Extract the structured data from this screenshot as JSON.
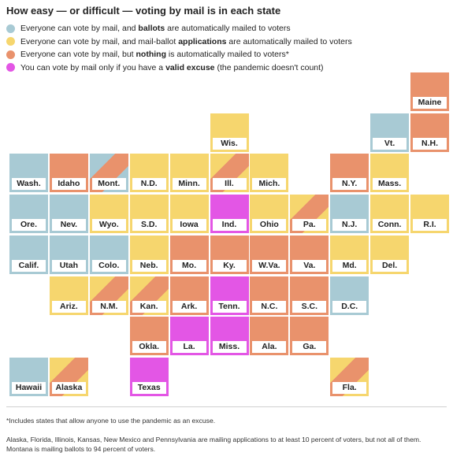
{
  "title": "How easy — or difficult — voting by mail is in each state",
  "colors": {
    "ballots": "#a8cad4",
    "applications": "#f6d66e",
    "nothing": "#e9926c",
    "excuse": "#e356e5"
  },
  "legend": [
    {
      "key": "ballots",
      "pre": "Everyone can vote by mail, and ",
      "bold": "ballots",
      "post": " are automatically mailed to voters"
    },
    {
      "key": "applications",
      "pre": "Everyone can vote by mail, and mail-ballot ",
      "bold": "applications",
      "post": " are automatically mailed to voters"
    },
    {
      "key": "nothing",
      "pre": "Everyone can vote by mail, but ",
      "bold": "nothing",
      "post": " is automatically mailed to voters*"
    },
    {
      "key": "excuse",
      "pre": "You can vote by mail only if you have a ",
      "bold": "valid excuse",
      "post": " (the pandemic doesn't count)"
    }
  ],
  "states": [
    {
      "label": "Maine",
      "col": 10,
      "row": 0,
      "cat": "nothing"
    },
    {
      "label": "Wis.",
      "col": 5,
      "row": 1,
      "cat": "applications"
    },
    {
      "label": "Vt.",
      "col": 9,
      "row": 1,
      "cat": "ballots"
    },
    {
      "label": "N.H.",
      "col": 10,
      "row": 1,
      "cat": "nothing"
    },
    {
      "label": "Wash.",
      "col": 0,
      "row": 2,
      "cat": "ballots"
    },
    {
      "label": "Idaho",
      "col": 1,
      "row": 2,
      "cat": "nothing"
    },
    {
      "label": "Mont.",
      "col": 2,
      "row": 2,
      "cat": "ballots",
      "cat2": "nothing"
    },
    {
      "label": "N.D.",
      "col": 3,
      "row": 2,
      "cat": "applications"
    },
    {
      "label": "Minn.",
      "col": 4,
      "row": 2,
      "cat": "applications"
    },
    {
      "label": "Ill.",
      "col": 5,
      "row": 2,
      "cat": "applications",
      "cat2": "nothing"
    },
    {
      "label": "Mich.",
      "col": 6,
      "row": 2,
      "cat": "applications"
    },
    {
      "label": "N.Y.",
      "col": 8,
      "row": 2,
      "cat": "nothing"
    },
    {
      "label": "Mass.",
      "col": 9,
      "row": 2,
      "cat": "applications"
    },
    {
      "label": "Ore.",
      "col": 0,
      "row": 3,
      "cat": "ballots"
    },
    {
      "label": "Nev.",
      "col": 1,
      "row": 3,
      "cat": "ballots"
    },
    {
      "label": "Wyo.",
      "col": 2,
      "row": 3,
      "cat": "applications"
    },
    {
      "label": "S.D.",
      "col": 3,
      "row": 3,
      "cat": "applications"
    },
    {
      "label": "Iowa",
      "col": 4,
      "row": 3,
      "cat": "applications"
    },
    {
      "label": "Ind.",
      "col": 5,
      "row": 3,
      "cat": "excuse"
    },
    {
      "label": "Ohio",
      "col": 6,
      "row": 3,
      "cat": "applications"
    },
    {
      "label": "Pa.",
      "col": 7,
      "row": 3,
      "cat": "applications",
      "cat2": "nothing"
    },
    {
      "label": "N.J.",
      "col": 8,
      "row": 3,
      "cat": "ballots"
    },
    {
      "label": "Conn.",
      "col": 9,
      "row": 3,
      "cat": "applications"
    },
    {
      "label": "R.I.",
      "col": 10,
      "row": 3,
      "cat": "applications"
    },
    {
      "label": "Calif.",
      "col": 0,
      "row": 4,
      "cat": "ballots"
    },
    {
      "label": "Utah",
      "col": 1,
      "row": 4,
      "cat": "ballots"
    },
    {
      "label": "Colo.",
      "col": 2,
      "row": 4,
      "cat": "ballots"
    },
    {
      "label": "Neb.",
      "col": 3,
      "row": 4,
      "cat": "applications"
    },
    {
      "label": "Mo.",
      "col": 4,
      "row": 4,
      "cat": "nothing"
    },
    {
      "label": "Ky.",
      "col": 5,
      "row": 4,
      "cat": "nothing"
    },
    {
      "label": "W.Va.",
      "col": 6,
      "row": 4,
      "cat": "nothing"
    },
    {
      "label": "Va.",
      "col": 7,
      "row": 4,
      "cat": "nothing"
    },
    {
      "label": "Md.",
      "col": 8,
      "row": 4,
      "cat": "applications"
    },
    {
      "label": "Del.",
      "col": 9,
      "row": 4,
      "cat": "applications"
    },
    {
      "label": "Ariz.",
      "col": 1,
      "row": 5,
      "cat": "applications"
    },
    {
      "label": "N.M.",
      "col": 2,
      "row": 5,
      "cat": "applications",
      "cat2": "nothing"
    },
    {
      "label": "Kan.",
      "col": 3,
      "row": 5,
      "cat": "applications",
      "cat2": "nothing"
    },
    {
      "label": "Ark.",
      "col": 4,
      "row": 5,
      "cat": "nothing"
    },
    {
      "label": "Tenn.",
      "col": 5,
      "row": 5,
      "cat": "excuse"
    },
    {
      "label": "N.C.",
      "col": 6,
      "row": 5,
      "cat": "nothing"
    },
    {
      "label": "S.C.",
      "col": 7,
      "row": 5,
      "cat": "nothing"
    },
    {
      "label": "D.C.",
      "col": 8,
      "row": 5,
      "cat": "ballots"
    },
    {
      "label": "Okla.",
      "col": 3,
      "row": 6,
      "cat": "nothing"
    },
    {
      "label": "La.",
      "col": 4,
      "row": 6,
      "cat": "excuse"
    },
    {
      "label": "Miss.",
      "col": 5,
      "row": 6,
      "cat": "excuse"
    },
    {
      "label": "Ala.",
      "col": 6,
      "row": 6,
      "cat": "nothing"
    },
    {
      "label": "Ga.",
      "col": 7,
      "row": 6,
      "cat": "nothing"
    },
    {
      "label": "Hawaii",
      "col": 0,
      "row": 7,
      "cat": "ballots"
    },
    {
      "label": "Alaska",
      "col": 1,
      "row": 7,
      "cat": "applications",
      "cat2": "nothing"
    },
    {
      "label": "Texas",
      "col": 3,
      "row": 7,
      "cat": "excuse"
    },
    {
      "label": "Fla.",
      "col": 8,
      "row": 7,
      "cat": "applications",
      "cat2": "nothing"
    }
  ],
  "footnote1": "*Includes states that allow anyone to use the pandemic as an excuse.",
  "footnote2": "Alaska, Florida, Illinois, Kansas, New Mexico and Pennsylvania are mailing applications to at least 10 percent of voters, but not all of them. Montana is mailing ballots to 94 percent of voters."
}
